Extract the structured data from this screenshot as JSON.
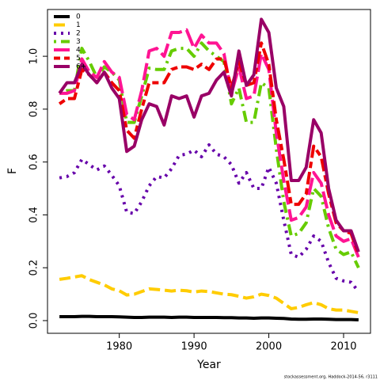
{
  "chart_data": {
    "type": "line",
    "xlabel": "Year",
    "ylabel": "F",
    "footnote": "stockassessment.org, Haddock-2014-56, r3111",
    "x": [
      1972,
      1973,
      1974,
      1975,
      1976,
      1977,
      1978,
      1979,
      1980,
      1981,
      1982,
      1983,
      1984,
      1985,
      1986,
      1987,
      1988,
      1989,
      1990,
      1991,
      1992,
      1993,
      1994,
      1995,
      1996,
      1997,
      1998,
      1999,
      2000,
      2001,
      2002,
      2003,
      2004,
      2005,
      2006,
      2007,
      2008,
      2009,
      2010,
      2011,
      2012
    ],
    "xlim": [
      1970.4,
      2013.6
    ],
    "xticks": [
      1980,
      1990,
      2000,
      2010
    ],
    "ylim": [
      -0.048,
      1.177
    ],
    "yticks": [
      {
        "value": 0,
        "label": "0.0"
      },
      0.2,
      0.4,
      0.6,
      0.8,
      {
        "value": 1,
        "label": "1.0"
      }
    ],
    "legend": "top-left",
    "series": [
      {
        "name": "0",
        "color": "#000000",
        "dash": "solid",
        "values": [
          0.015,
          0.015,
          0.015,
          0.016,
          0.016,
          0.015,
          0.015,
          0.015,
          0.014,
          0.013,
          0.012,
          0.012,
          0.013,
          0.013,
          0.013,
          0.012,
          0.013,
          0.013,
          0.012,
          0.012,
          0.012,
          0.012,
          0.011,
          0.011,
          0.01,
          0.01,
          0.009,
          0.01,
          0.01,
          0.009,
          0.008,
          0.006,
          0.005,
          0.005,
          0.006,
          0.006,
          0.005,
          0.004,
          0.004,
          0.004,
          0.003
        ]
      },
      {
        "name": "1",
        "color": "#FFCC00",
        "dash": "dashed",
        "values": [
          0.156,
          0.16,
          0.165,
          0.17,
          0.155,
          0.145,
          0.135,
          0.12,
          0.113,
          0.097,
          0.1,
          0.11,
          0.12,
          0.118,
          0.115,
          0.112,
          0.115,
          0.113,
          0.108,
          0.112,
          0.11,
          0.105,
          0.1,
          0.098,
          0.092,
          0.085,
          0.09,
          0.1,
          0.095,
          0.085,
          0.065,
          0.045,
          0.05,
          0.06,
          0.068,
          0.06,
          0.045,
          0.04,
          0.04,
          0.035,
          0.03
        ]
      },
      {
        "name": "2",
        "color": "#6600AA",
        "dash": "dotted",
        "values": [
          0.54,
          0.545,
          0.56,
          0.61,
          0.59,
          0.57,
          0.585,
          0.55,
          0.51,
          0.41,
          0.405,
          0.45,
          0.51,
          0.545,
          0.54,
          0.575,
          0.625,
          0.63,
          0.645,
          0.62,
          0.665,
          0.63,
          0.62,
          0.59,
          0.52,
          0.56,
          0.5,
          0.5,
          0.58,
          0.52,
          0.38,
          0.25,
          0.24,
          0.27,
          0.32,
          0.3,
          0.22,
          0.16,
          0.15,
          0.145,
          0.11
        ]
      },
      {
        "name": "3",
        "color": "#66CC00",
        "dash": "dotdash",
        "values": [
          0.86,
          0.87,
          0.87,
          1.03,
          0.98,
          0.92,
          0.96,
          0.94,
          0.91,
          0.75,
          0.75,
          0.85,
          0.955,
          0.95,
          0.95,
          1.02,
          1.03,
          1.03,
          1.0,
          1.05,
          1.02,
          1.0,
          0.98,
          0.82,
          0.88,
          0.75,
          0.75,
          0.9,
          0.88,
          0.65,
          0.45,
          0.32,
          0.33,
          0.37,
          0.5,
          0.47,
          0.35,
          0.27,
          0.25,
          0.26,
          0.2
        ]
      },
      {
        "name": "4",
        "color": "#FF1493",
        "dash": "longdash",
        "values": [
          0.86,
          0.86,
          0.87,
          0.99,
          0.94,
          0.92,
          0.98,
          0.94,
          0.92,
          0.78,
          0.76,
          0.87,
          1.02,
          1.03,
          1.0,
          1.09,
          1.09,
          1.1,
          1.03,
          1.08,
          1.05,
          1.05,
          1.01,
          0.86,
          0.96,
          0.84,
          0.85,
          1.01,
          0.95,
          0.71,
          0.53,
          0.38,
          0.39,
          0.43,
          0.56,
          0.52,
          0.4,
          0.32,
          0.3,
          0.31,
          0.24
        ]
      },
      {
        "name": "5",
        "color": "#EE0000",
        "dash": "twodash",
        "values": [
          0.82,
          0.84,
          0.84,
          0.95,
          0.93,
          0.9,
          0.94,
          0.9,
          0.87,
          0.72,
          0.69,
          0.8,
          0.9,
          0.9,
          0.9,
          0.95,
          0.96,
          0.96,
          0.95,
          0.97,
          0.95,
          0.99,
          0.99,
          0.88,
          0.98,
          0.89,
          0.9,
          1.05,
          0.97,
          0.76,
          0.61,
          0.44,
          0.44,
          0.48,
          0.66,
          0.62,
          0.48,
          0.37,
          0.34,
          0.33,
          0.25
        ]
      },
      {
        "name": "6+",
        "color": "#990066",
        "dash": "solid",
        "values": [
          0.86,
          0.9,
          0.9,
          0.97,
          0.93,
          0.9,
          0.94,
          0.88,
          0.84,
          0.64,
          0.66,
          0.76,
          0.82,
          0.81,
          0.74,
          0.85,
          0.84,
          0.85,
          0.77,
          0.85,
          0.86,
          0.91,
          0.94,
          0.85,
          1.02,
          0.89,
          0.93,
          1.14,
          1.09,
          0.88,
          0.81,
          0.53,
          0.53,
          0.58,
          0.76,
          0.71,
          0.5,
          0.38,
          0.34,
          0.34,
          0.26
        ]
      }
    ]
  }
}
